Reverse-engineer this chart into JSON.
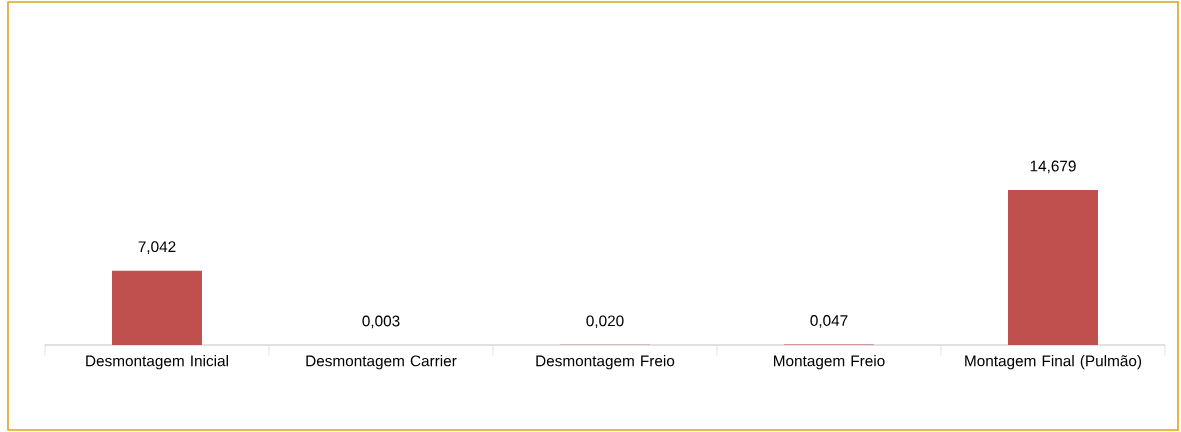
{
  "chart_data": {
    "type": "bar",
    "categories": [
      "Desmontagem Inicial",
      "Desmontagem Carrier",
      "Desmontagem Freio",
      "Montagem Freio",
      "Montagem Final (Pulmão)"
    ],
    "values": [
      7.042,
      0.003,
      0.02,
      0.047,
      14.679
    ],
    "value_labels": [
      "7,042",
      "0,003",
      "0,020",
      "0,047",
      "14,679"
    ],
    "color": "#c0504d"
  }
}
